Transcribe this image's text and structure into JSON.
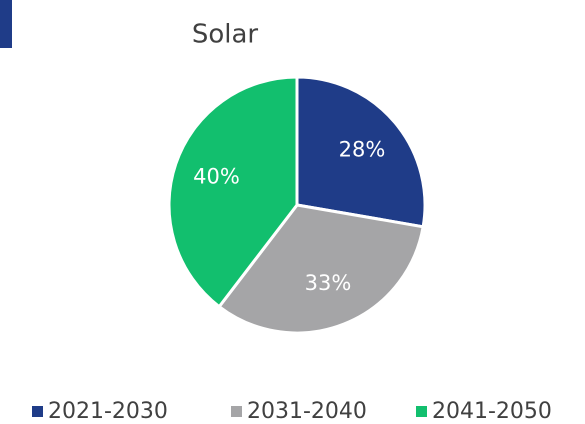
{
  "chart_data": {
    "type": "pie",
    "title": "Solar",
    "categories": [
      "2021-2030",
      "2031-2040",
      "2041-2050"
    ],
    "values": [
      28,
      33,
      40
    ],
    "value_labels": [
      "28%",
      "33%",
      "40%"
    ],
    "colors": [
      "#1f3c88",
      "#a5a5a7",
      "#12bf6e"
    ],
    "legend": "bottom"
  }
}
